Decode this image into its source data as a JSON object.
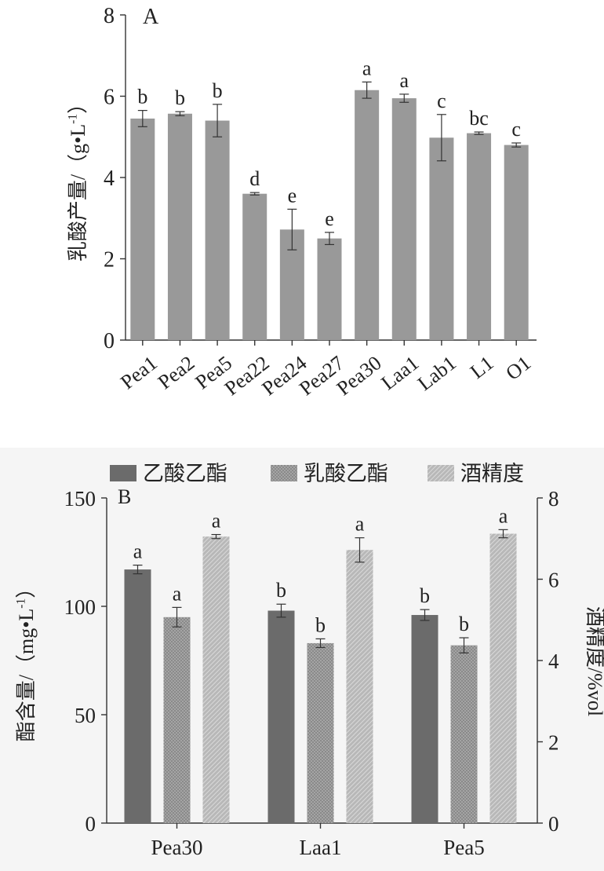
{
  "chart_data": [
    {
      "type": "bar",
      "panel_label": "A",
      "ylabel": "乳酸产量/（g•L-1）",
      "ylim": [
        0,
        8
      ],
      "yticks": [
        0,
        2,
        4,
        6,
        8
      ],
      "grid": false,
      "bar_color": "#999999",
      "categories": [
        "Pea1",
        "Pea2",
        "Pea5",
        "Pea22",
        "Pea24",
        "Pea27",
        "Pea30",
        "Laa1",
        "Lab1",
        "L1",
        "O1"
      ],
      "values": [
        5.45,
        5.57,
        5.4,
        3.6,
        2.72,
        2.5,
        6.15,
        5.95,
        4.98,
        5.09,
        4.8
      ],
      "errors": [
        0.2,
        0.05,
        0.4,
        0.03,
        0.5,
        0.15,
        0.2,
        0.1,
        0.57,
        0.03,
        0.05
      ],
      "letters": [
        "b",
        "b",
        "b",
        "d",
        "e",
        "e",
        "a",
        "a",
        "c",
        "bc",
        "c"
      ]
    },
    {
      "type": "bar",
      "panel_label": "B",
      "ylabel": "酯含量/（mg•L-1）",
      "ylabel_right": "酒精度/%vol",
      "ylim": [
        0,
        150
      ],
      "yticks": [
        0,
        50,
        100,
        150
      ],
      "ylim_right": [
        0,
        8
      ],
      "yticks_right": [
        0,
        2,
        4,
        6,
        8
      ],
      "legend_position": "top",
      "categories": [
        "Pea30",
        "Laa1",
        "Pea5"
      ],
      "series": [
        {
          "name": "乙酸乙酯",
          "axis": "left",
          "color": "#6b6b6b",
          "pattern": "solid",
          "values": [
            117,
            98,
            96
          ],
          "errors": [
            2,
            3,
            2.5
          ],
          "letters": [
            "a",
            "b",
            "b"
          ]
        },
        {
          "name": "乳酸乙酯",
          "axis": "left",
          "color": "#8a8a8a",
          "pattern": "dots",
          "values": [
            95,
            83,
            82
          ],
          "errors": [
            4.5,
            2,
            3.5
          ],
          "letters": [
            "a",
            "b",
            "b"
          ]
        },
        {
          "name": "酒精度",
          "axis": "right",
          "color": "#b2b2b2",
          "pattern": "hatch",
          "values": [
            7.05,
            6.72,
            7.12
          ],
          "errors": [
            0.05,
            0.3,
            0.1
          ],
          "letters": [
            "a",
            "a",
            "a"
          ]
        }
      ]
    }
  ]
}
